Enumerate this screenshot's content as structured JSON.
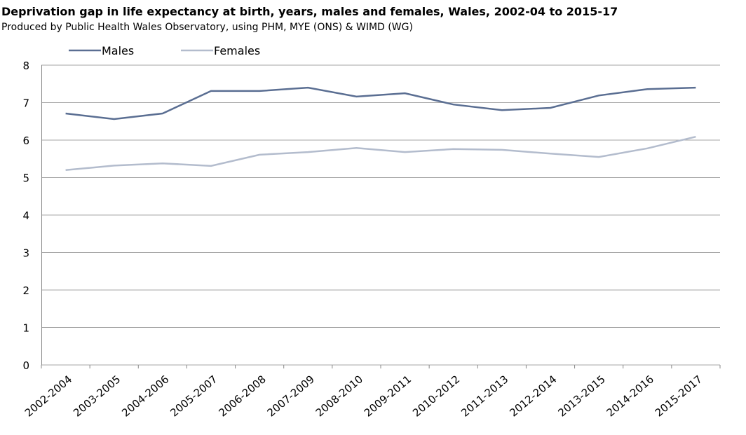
{
  "chart_data": {
    "type": "line",
    "title": "Deprivation gap in life expectancy at birth, years, males and females, Wales, 2002-04 to 2015-17",
    "subtitle": "Produced by Public Health Wales Observatory, using PHM, MYE (ONS) & WIMD (WG)",
    "categories": [
      "2002-2004",
      "2003-2005",
      "2004-2006",
      "2005-2007",
      "2006-2008",
      "2007-2009",
      "2008-2010",
      "2009-2011",
      "2010-2012",
      "2011-2013",
      "2012-2014",
      "2013-2015",
      "2014-2016",
      "2015-2017"
    ],
    "series": [
      {
        "name": "Males",
        "color": "#5a6e92",
        "values": [
          6.71,
          6.56,
          6.71,
          7.31,
          7.31,
          7.4,
          7.16,
          7.25,
          6.95,
          6.8,
          6.86,
          7.19,
          7.36,
          7.4
        ]
      },
      {
        "name": "Females",
        "color": "#b3bccd",
        "values": [
          5.2,
          5.32,
          5.38,
          5.31,
          5.61,
          5.68,
          5.79,
          5.68,
          5.76,
          5.74,
          5.64,
          5.55,
          5.78,
          6.09
        ]
      }
    ],
    "ylim": [
      0,
      8
    ],
    "yticks": [
      0,
      1,
      2,
      3,
      4,
      5,
      6,
      7,
      8
    ],
    "grid": true,
    "legend": "top-left"
  }
}
